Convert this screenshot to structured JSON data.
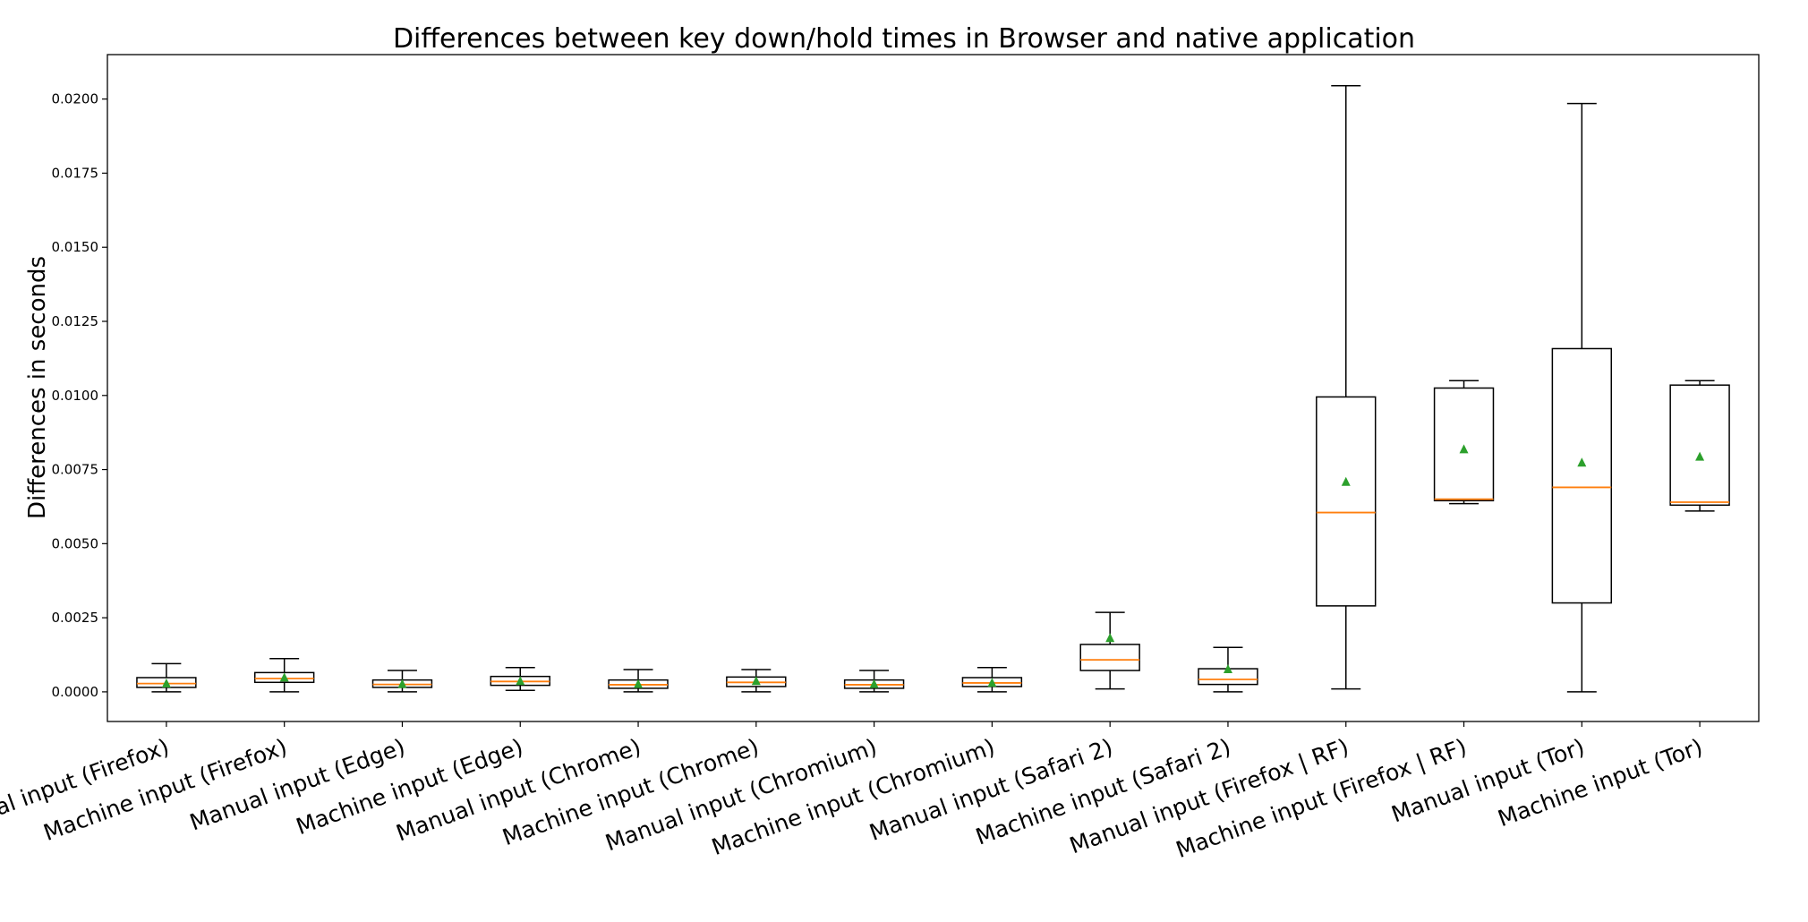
{
  "chart_data": {
    "type": "box",
    "title": "Differences between key down/hold times in Browser and native application",
    "xlabel": "",
    "ylabel": "Differences in seconds",
    "ylim": [
      -0.001,
      0.0215
    ],
    "yticks": [
      0.0,
      0.0025,
      0.005,
      0.0075,
      0.01,
      0.0125,
      0.015,
      0.0175,
      0.02
    ],
    "ytick_labels": [
      "0.0000",
      "0.0025",
      "0.0050",
      "0.0075",
      "0.0100",
      "0.0125",
      "0.0150",
      "0.0175",
      "0.0200"
    ],
    "grid": false,
    "colors": {
      "box": "#000000",
      "median": "#ff7f0e",
      "mean": "#2ca02c"
    },
    "categories": [
      "Manual input (Firefox)",
      "Machine input (Firefox)",
      "Manual input (Edge)",
      "Machine input (Edge)",
      "Manual input (Chrome)",
      "Machine input (Chrome)",
      "Manual input (Chromium)",
      "Machine input (Chromium)",
      "Manual input (Safari 2)",
      "Machine input (Safari 2)",
      "Manual input (Firefox | RF)",
      "Machine input (Firefox | RF)",
      "Manual input (Tor)",
      "Machine input (Tor)"
    ],
    "boxes": [
      {
        "whislo": 0.0,
        "q1": 0.00015,
        "med": 0.00028,
        "q3": 0.00048,
        "whishi": 0.00095,
        "mean": 0.0003
      },
      {
        "whislo": 0.0,
        "q1": 0.00032,
        "med": 0.00045,
        "q3": 0.00065,
        "whishi": 0.00112,
        "mean": 0.0005
      },
      {
        "whislo": 0.0,
        "q1": 0.00015,
        "med": 0.00025,
        "q3": 0.0004,
        "whishi": 0.00072,
        "mean": 0.00028
      },
      {
        "whislo": 5e-05,
        "q1": 0.00022,
        "med": 0.00035,
        "q3": 0.00052,
        "whishi": 0.00082,
        "mean": 0.00038
      },
      {
        "whislo": 0.0,
        "q1": 0.00012,
        "med": 0.00024,
        "q3": 0.0004,
        "whishi": 0.00075,
        "mean": 0.00028
      },
      {
        "whislo": 0.0,
        "q1": 0.00018,
        "med": 0.00032,
        "q3": 0.0005,
        "whishi": 0.00075,
        "mean": 0.00038
      },
      {
        "whislo": 0.0,
        "q1": 0.00012,
        "med": 0.00024,
        "q3": 0.0004,
        "whishi": 0.00072,
        "mean": 0.00028
      },
      {
        "whislo": 0.0,
        "q1": 0.00018,
        "med": 0.0003,
        "q3": 0.00048,
        "whishi": 0.00082,
        "mean": 0.00032
      },
      {
        "whislo": 0.0001,
        "q1": 0.00072,
        "med": 0.00108,
        "q3": 0.0016,
        "whishi": 0.00268,
        "mean": 0.00183
      },
      {
        "whislo": 0.0,
        "q1": 0.00025,
        "med": 0.00042,
        "q3": 0.00078,
        "whishi": 0.0015,
        "mean": 0.00078
      },
      {
        "whislo": 0.0001,
        "q1": 0.0029,
        "med": 0.00605,
        "q3": 0.00995,
        "whishi": 0.02045,
        "mean": 0.0071
      },
      {
        "whislo": 0.00635,
        "q1": 0.00645,
        "med": 0.0065,
        "q3": 0.01025,
        "whishi": 0.0105,
        "mean": 0.0082
      },
      {
        "whislo": 0.0,
        "q1": 0.003,
        "med": 0.0069,
        "q3": 0.01158,
        "whishi": 0.01985,
        "mean": 0.00775
      },
      {
        "whislo": 0.0061,
        "q1": 0.0063,
        "med": 0.0064,
        "q3": 0.01035,
        "whishi": 0.0105,
        "mean": 0.00795
      }
    ]
  }
}
